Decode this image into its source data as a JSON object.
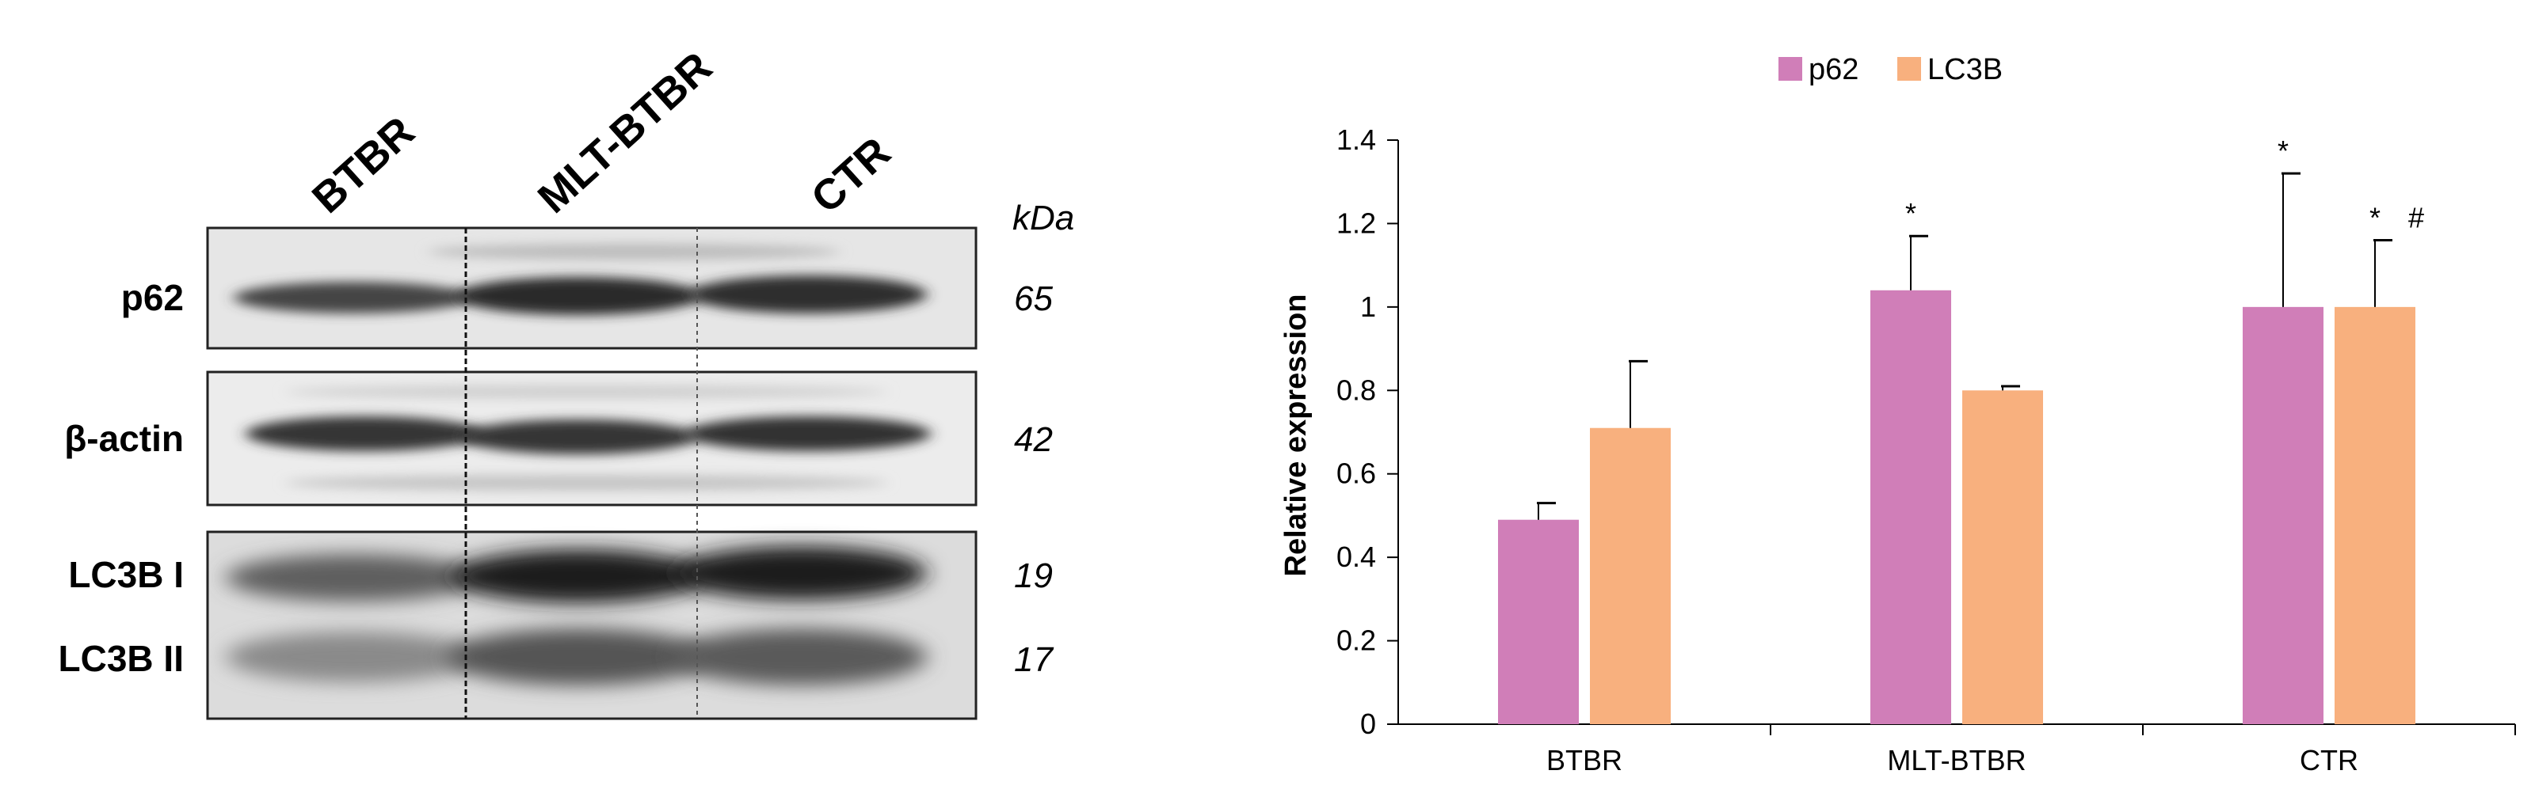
{
  "blot": {
    "lanes": [
      "BTBR",
      "MLT-BTBR",
      "CTR"
    ],
    "unit_label": "kDa",
    "rows": [
      {
        "label": "p62",
        "kda": "65"
      },
      {
        "label": "β-actin",
        "kda": "42"
      },
      {
        "label": "LC3B I",
        "kda": "19"
      },
      {
        "label": "LC3B II",
        "kda": "17"
      }
    ]
  },
  "chart_data": {
    "type": "bar",
    "categories": [
      "BTBR",
      "MLT-BTBR",
      "CTR"
    ],
    "series": [
      {
        "name": "p62",
        "color": "#d07eb8",
        "values": [
          0.49,
          1.04,
          1.0
        ],
        "errors": [
          0.04,
          0.13,
          0.32
        ]
      },
      {
        "name": "LC3B",
        "color": "#f8b07e",
        "values": [
          0.71,
          0.8,
          1.0
        ],
        "errors": [
          0.16,
          0.01,
          0.16
        ]
      }
    ],
    "ylabel": "Relative expression",
    "xlabel": "",
    "ylim": [
      0,
      1.4
    ],
    "yticks": [
      "0",
      "0.2",
      "0.4",
      "0.6",
      "0.8",
      "1",
      "1.2",
      "1.4"
    ],
    "legend_position": "top-center",
    "annotations": [
      {
        "category": "MLT-BTBR",
        "series": "p62",
        "text": "*"
      },
      {
        "category": "CTR",
        "series": "p62",
        "text": "*"
      },
      {
        "category": "CTR",
        "series": "LC3B",
        "text": "*"
      },
      {
        "category": "CTR",
        "series": "LC3B",
        "text": "#"
      }
    ],
    "grid": false
  }
}
